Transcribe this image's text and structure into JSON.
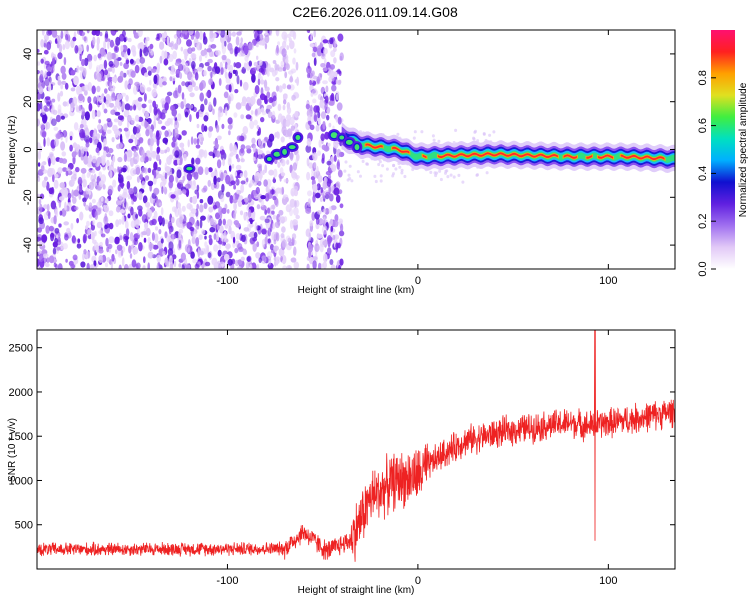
{
  "title": "C2E6.2026.011.09.14.G08",
  "chart_data": [
    {
      "type": "heatmap",
      "xlabel": "Height of straight line (km)",
      "ylabel": "Frequency (Hz)",
      "xlim": [
        -200,
        135
      ],
      "ylim": [
        -50,
        50
      ],
      "x_ticks": [
        -100,
        0,
        100
      ],
      "y_ticks": [
        -40,
        -20,
        0,
        20,
        40
      ],
      "colorbar": {
        "label": "Normalized spectral amplitude",
        "range": [
          0,
          1
        ],
        "ticks": [
          "0.0",
          "0.2",
          "0.4",
          "0.6",
          "0.8"
        ],
        "colors": [
          "#ffffff",
          "#e2c9f7",
          "#a070f0",
          "#6020e0",
          "#1010d0",
          "#00b0ff",
          "#00e0c0",
          "#40ee40",
          "#e0e020",
          "#ffa000",
          "#ff2020",
          "#ff1070"
        ]
      },
      "ridge": {
        "description": "dominant frequency trace",
        "points": [
          [
            -120,
            -8
          ],
          [
            -85,
            -6
          ],
          [
            -72,
            -2
          ],
          [
            -62,
            4
          ],
          [
            -42,
            6
          ],
          [
            -30,
            2
          ],
          [
            -10,
            0
          ],
          [
            0,
            -3
          ],
          [
            40,
            -2
          ],
          [
            80,
            -3
          ],
          [
            110,
            -3
          ],
          [
            135,
            -4
          ]
        ],
        "noise_region_end": -40,
        "gap": [
          -63,
          -58
        ]
      }
    },
    {
      "type": "line",
      "xlabel": "Height of straight line (km)",
      "ylabel": "SNR (10 * v/v)",
      "xlim": [
        -200,
        135
      ],
      "ylim": [
        0,
        2700
      ],
      "x_ticks": [
        -100,
        0,
        100
      ],
      "y_ticks": [
        500,
        1000,
        1500,
        2000,
        2500
      ],
      "series": [
        {
          "color": "#ee2222",
          "trend_x": [
            -200,
            -70,
            -60,
            -48,
            -35,
            -25,
            -12,
            0,
            10,
            25,
            45,
            60,
            80,
            90,
            100,
            120,
            135
          ],
          "trend_y": [
            220,
            230,
            420,
            200,
            330,
            800,
            1000,
            1050,
            1250,
            1450,
            1550,
            1600,
            1650,
            1620,
            1650,
            1720,
            1780
          ],
          "spike": {
            "x": 93,
            "max": 2700,
            "min": 320
          }
        }
      ]
    }
  ]
}
